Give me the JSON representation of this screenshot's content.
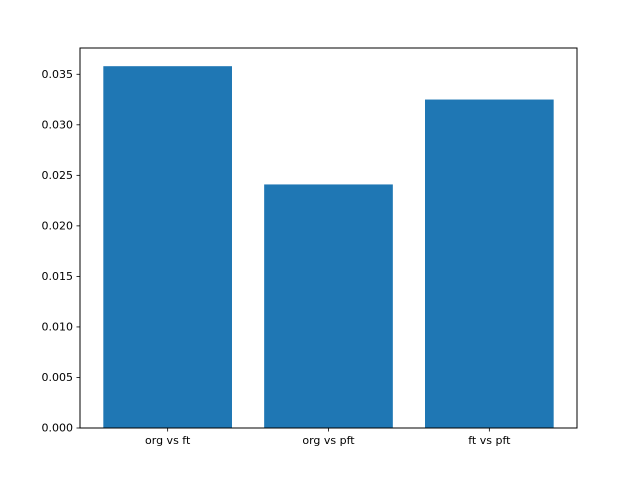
{
  "chart_data": {
    "type": "bar",
    "title": "",
    "xlabel": "",
    "ylabel": "",
    "categories": [
      "org vs ft",
      "org vs pft",
      "ft vs pft"
    ],
    "values": [
      0.0358,
      0.0241,
      0.0325
    ],
    "ylim": [
      0,
      0.0376
    ],
    "yticks": [
      0.0,
      0.005,
      0.01,
      0.015,
      0.02,
      0.025,
      0.03,
      0.035
    ],
    "ytick_labels": [
      "0.000",
      "0.005",
      "0.010",
      "0.015",
      "0.020",
      "0.025",
      "0.030",
      "0.035"
    ],
    "bar_color": "#1f77b4",
    "grid": false,
    "legend": "none",
    "background_color": "#ffffff",
    "axis_color": "#000000"
  }
}
